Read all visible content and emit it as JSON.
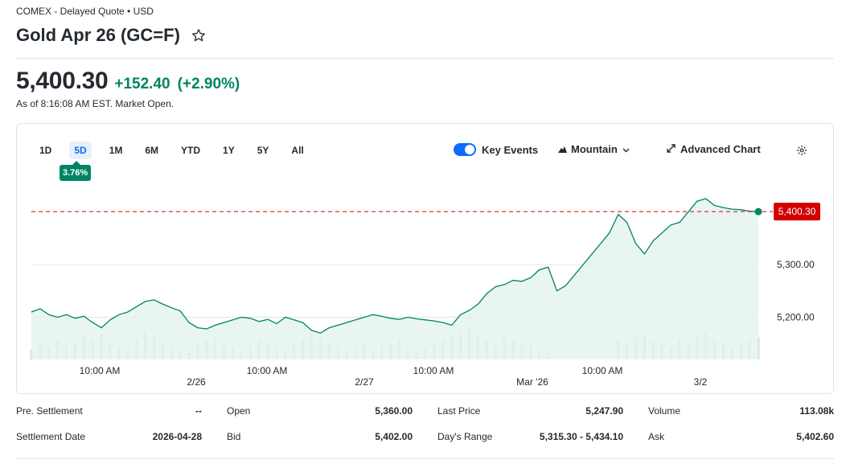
{
  "header": {
    "exchange": "COMEX - Delayed Quote • USD",
    "title": "Gold Apr 26 (GC=F)",
    "price": "5,400.30",
    "change": "+152.40",
    "change_pct": "(+2.90%)",
    "as_of": "As of 8:16:08 AM EST. Market Open."
  },
  "chart": {
    "ranges": [
      "1D",
      "5D",
      "1M",
      "6M",
      "YTD",
      "1Y",
      "5Y",
      "All"
    ],
    "active_range": "5D",
    "range_change": "3.76%",
    "key_events_label": "Key Events",
    "key_events_on": true,
    "chart_type_label": "Mountain",
    "advanced_label": "Advanced Chart",
    "price_tag": "5,400.30",
    "colors": {
      "line": "#008463",
      "price_tag": "#d30000",
      "toggle": "#0f69ff"
    }
  },
  "chart_data": {
    "type": "area",
    "y_tick_labels": [
      "5,300.00",
      "5,200.00"
    ],
    "ylim": [
      5120,
      5460
    ],
    "x_tick_labels": [
      "10:00 AM",
      "2/26",
      "10:00 AM",
      "2/27",
      "10:00 AM",
      "Mar '26",
      "10:00 AM",
      "3/2"
    ],
    "reference_line": 5400.3,
    "series": [
      {
        "values": [
          5210,
          5216,
          5205,
          5200,
          5205,
          5198,
          5202,
          5190,
          5180,
          5195,
          5205,
          5210,
          5220,
          5230,
          5233,
          5225,
          5218,
          5212,
          5190,
          5180,
          5178,
          5185,
          5190,
          5195,
          5200,
          5198,
          5192,
          5196,
          5188,
          5200,
          5195,
          5190,
          5175,
          5170,
          5180,
          5185,
          5190,
          5195,
          5200,
          5205,
          5202,
          5198,
          5196,
          5200,
          5197,
          5195,
          5193,
          5190,
          5185,
          5205,
          5213,
          5225,
          5245,
          5258,
          5262,
          5270,
          5268,
          5275,
          5290,
          5295,
          5250,
          5260,
          5280,
          5300,
          5320,
          5340,
          5360,
          5395,
          5380,
          5340,
          5320,
          5345,
          5360,
          5375,
          5380,
          5400,
          5420,
          5425,
          5412,
          5408,
          5405,
          5404,
          5401,
          5400.3
        ],
        "volume": [
          0.3,
          0.5,
          0.4,
          0.6,
          0.4,
          0.5,
          0.7,
          0.6,
          0.8,
          0.5,
          0.4,
          0.3,
          0.6,
          0.9,
          0.7,
          0.5,
          0.4,
          0.3,
          0.2,
          0.5,
          0.6,
          0.7,
          0.5,
          0.4,
          0.3,
          0.4,
          0.6,
          0.5,
          0.4,
          0.3,
          0.5,
          0.6,
          0.8,
          0.7,
          0.5,
          0.4,
          0.3,
          0.4,
          0.5,
          0.3,
          0.4,
          0.5,
          0.6,
          0.3,
          0.2,
          0.4,
          0.5,
          0.6,
          0.7,
          0.9,
          1.0,
          0.8,
          0.6,
          0.5,
          0.7,
          0.6,
          0.5,
          0.4,
          0.3,
          0.2,
          0,
          0,
          0,
          0,
          0,
          0,
          0,
          0.6,
          0.5,
          0.7,
          0.8,
          0.6,
          0.5,
          0.4,
          0.6,
          0.5,
          0.7,
          0.9,
          0.6,
          0.5,
          0.4,
          0.5,
          0.6,
          0.7
        ]
      }
    ]
  },
  "stats": [
    {
      "label": "Pre. Settlement",
      "value": "--"
    },
    {
      "label": "Settlement Date",
      "value": "2026-04-28"
    },
    {
      "label": "Open",
      "value": "5,360.00"
    },
    {
      "label": "Bid",
      "value": "5,402.00"
    },
    {
      "label": "Last Price",
      "value": "5,247.90"
    },
    {
      "label": "Day's Range",
      "value": "5,315.30 - 5,434.10"
    },
    {
      "label": "Volume",
      "value": "113.08k"
    },
    {
      "label": "Ask",
      "value": "5,402.60"
    }
  ]
}
